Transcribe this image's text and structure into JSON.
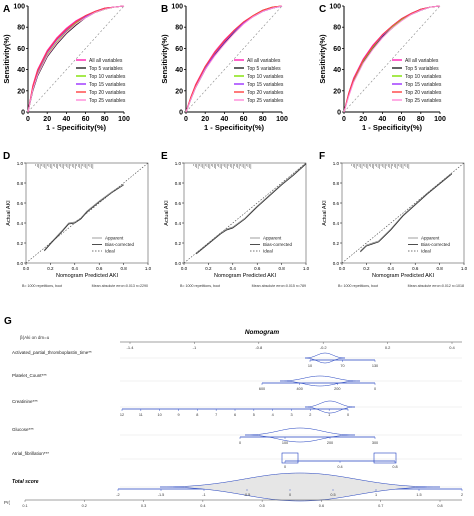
{
  "chart_data": [
    {
      "panel_label": "A",
      "type": "line",
      "xlabel": "1 - Specificity(%)",
      "ylabel": "Sensitivity(%)",
      "xlim": [
        0,
        100
      ],
      "ylim": [
        0,
        100
      ],
      "xticks": [
        "0",
        "20",
        "40",
        "60",
        "80",
        "100"
      ],
      "yticks": [
        "0",
        "20",
        "40",
        "60",
        "80",
        "100"
      ],
      "legend_position": "bottom-right",
      "series": [
        {
          "name": "All all variables",
          "color": "#ff1fb0",
          "x": [
            0,
            5,
            10,
            20,
            30,
            40,
            50,
            60,
            70,
            80,
            90,
            100
          ],
          "y": [
            0,
            25,
            40,
            58,
            70,
            79,
            86,
            91,
            95,
            98,
            99,
            100
          ]
        },
        {
          "name": "Top 5 variables",
          "color": "#222222",
          "x": [
            0,
            5,
            10,
            20,
            30,
            40,
            50,
            60,
            70,
            80,
            90,
            100
          ],
          "y": [
            0,
            20,
            34,
            52,
            64,
            74,
            82,
            89,
            94,
            97,
            99,
            100
          ]
        },
        {
          "name": "Top 10 variables",
          "color": "#7fe000",
          "x": [
            0,
            5,
            10,
            20,
            30,
            40,
            50,
            60,
            70,
            80,
            90,
            100
          ],
          "y": [
            0,
            22,
            36,
            54,
            66,
            76,
            84,
            90,
            94,
            97,
            99,
            100
          ]
        },
        {
          "name": "Top 15 variables",
          "color": "#9b30ff",
          "x": [
            0,
            5,
            10,
            20,
            30,
            40,
            50,
            60,
            70,
            80,
            90,
            100
          ],
          "y": [
            0,
            23,
            38,
            56,
            68,
            77,
            85,
            90,
            95,
            98,
            99,
            100
          ]
        },
        {
          "name": "Top 20 variables",
          "color": "#ff4040",
          "x": [
            0,
            5,
            10,
            20,
            30,
            40,
            50,
            60,
            70,
            80,
            90,
            100
          ],
          "y": [
            0,
            24,
            39,
            57,
            69,
            78,
            85,
            91,
            95,
            98,
            99,
            100
          ]
        },
        {
          "name": "Top 25 variables",
          "color": "#ff8ad8",
          "x": [
            0,
            5,
            10,
            20,
            30,
            40,
            50,
            60,
            70,
            80,
            90,
            100
          ],
          "y": [
            0,
            21,
            35,
            53,
            65,
            75,
            83,
            89,
            94,
            97,
            99,
            100
          ]
        }
      ]
    },
    {
      "panel_label": "B",
      "type": "line",
      "xlabel": "1 - Specificity(%)",
      "ylabel": "Sensitivity(%)",
      "xlim": [
        0,
        100
      ],
      "ylim": [
        0,
        100
      ],
      "xticks": [
        "0",
        "20",
        "40",
        "60",
        "80",
        "100"
      ],
      "yticks": [
        "0",
        "20",
        "40",
        "60",
        "80",
        "100"
      ],
      "legend_position": "bottom-right",
      "series": [
        {
          "name": "All all variables",
          "color": "#ff1fb0",
          "x": [
            0,
            5,
            10,
            20,
            30,
            40,
            50,
            60,
            70,
            80,
            90,
            100
          ],
          "y": [
            0,
            14,
            26,
            43,
            57,
            68,
            77,
            85,
            91,
            96,
            99,
            100
          ]
        },
        {
          "name": "Top 5 variables",
          "color": "#222222",
          "x": [
            0,
            5,
            10,
            20,
            30,
            40,
            50,
            60,
            70,
            80,
            90,
            100
          ],
          "y": [
            0,
            12,
            23,
            40,
            54,
            65,
            75,
            84,
            90,
            95,
            98,
            100
          ]
        },
        {
          "name": "Top 10 variables",
          "color": "#7fe000",
          "x": [
            0,
            5,
            10,
            20,
            30,
            40,
            50,
            60,
            70,
            80,
            90,
            100
          ],
          "y": [
            0,
            13,
            25,
            42,
            56,
            67,
            76,
            84,
            91,
            96,
            99,
            100
          ]
        },
        {
          "name": "Top 15 variables",
          "color": "#9b30ff",
          "x": [
            0,
            5,
            10,
            20,
            30,
            40,
            50,
            60,
            70,
            80,
            90,
            100
          ],
          "y": [
            0,
            13,
            24,
            41,
            55,
            66,
            76,
            84,
            90,
            95,
            98,
            100
          ]
        },
        {
          "name": "Top 20 variables",
          "color": "#ff4040",
          "x": [
            0,
            5,
            10,
            20,
            30,
            40,
            50,
            60,
            70,
            80,
            90,
            100
          ],
          "y": [
            0,
            14,
            25,
            43,
            56,
            67,
            77,
            85,
            91,
            96,
            99,
            100
          ]
        },
        {
          "name": "Top 25 variables",
          "color": "#ff8ad8",
          "x": [
            0,
            5,
            10,
            20,
            30,
            40,
            50,
            60,
            70,
            80,
            90,
            100
          ],
          "y": [
            0,
            12,
            23,
            40,
            53,
            64,
            74,
            83,
            90,
            95,
            98,
            100
          ]
        }
      ]
    },
    {
      "panel_label": "C",
      "type": "line",
      "xlabel": "1 - Specificity(%)",
      "ylabel": "Sensitivity(%)",
      "xlim": [
        0,
        100
      ],
      "ylim": [
        0,
        100
      ],
      "xticks": [
        "0",
        "20",
        "40",
        "60",
        "80",
        "100"
      ],
      "yticks": [
        "0",
        "20",
        "40",
        "60",
        "80",
        "100"
      ],
      "legend_position": "bottom-right",
      "series": [
        {
          "name": "All all variables",
          "color": "#ff1fb0",
          "x": [
            0,
            5,
            10,
            20,
            30,
            40,
            50,
            60,
            70,
            80,
            90,
            100
          ],
          "y": [
            0,
            18,
            32,
            50,
            63,
            73,
            81,
            88,
            93,
            97,
            99,
            100
          ]
        },
        {
          "name": "Top 5 variables",
          "color": "#222222",
          "x": [
            0,
            5,
            10,
            20,
            30,
            40,
            50,
            60,
            70,
            80,
            90,
            100
          ],
          "y": [
            0,
            16,
            29,
            47,
            60,
            71,
            79,
            87,
            92,
            96,
            99,
            100
          ]
        },
        {
          "name": "Top 10 variables",
          "color": "#7fe000",
          "x": [
            0,
            5,
            10,
            20,
            30,
            40,
            50,
            60,
            70,
            80,
            90,
            100
          ],
          "y": [
            0,
            17,
            30,
            48,
            61,
            72,
            80,
            87,
            93,
            97,
            99,
            100
          ]
        },
        {
          "name": "Top 15 variables",
          "color": "#9b30ff",
          "x": [
            0,
            5,
            10,
            20,
            30,
            40,
            50,
            60,
            70,
            80,
            90,
            100
          ],
          "y": [
            0,
            17,
            31,
            49,
            62,
            72,
            81,
            88,
            93,
            97,
            99,
            100
          ]
        },
        {
          "name": "Top 20 variables",
          "color": "#ff4040",
          "x": [
            0,
            5,
            10,
            20,
            30,
            40,
            50,
            60,
            70,
            80,
            90,
            100
          ],
          "y": [
            0,
            18,
            31,
            49,
            62,
            73,
            81,
            88,
            93,
            97,
            99,
            100
          ]
        },
        {
          "name": "Top 25 variables",
          "color": "#ff8ad8",
          "x": [
            0,
            5,
            10,
            20,
            30,
            40,
            50,
            60,
            70,
            80,
            90,
            100
          ],
          "y": [
            0,
            15,
            28,
            46,
            59,
            70,
            79,
            86,
            92,
            96,
            99,
            100
          ]
        }
      ]
    },
    {
      "panel_label": "D",
      "type": "line",
      "xlabel": "Nomogram Predicted AKI",
      "ylabel": "Actual AKI",
      "xlim": [
        0,
        1
      ],
      "ylim": [
        0,
        1
      ],
      "xticks": [
        "0.0",
        "0.2",
        "0.4",
        "0.6",
        "0.8",
        "1.0"
      ],
      "yticks": [
        "0.0",
        "0.2",
        "0.4",
        "0.6",
        "0.8",
        "1.0"
      ],
      "legend_position": "bottom-right",
      "footnote_left": "B= 1000 repetitions, boot",
      "footnote_right": "Mean absolute error=0.013 n=2290",
      "series": [
        {
          "name": "Apparent",
          "x": [
            0.15,
            0.2,
            0.3,
            0.35,
            0.4,
            0.45,
            0.5,
            0.6,
            0.7,
            0.8
          ],
          "y": [
            0.13,
            0.2,
            0.33,
            0.4,
            0.41,
            0.45,
            0.52,
            0.62,
            0.71,
            0.79
          ]
        },
        {
          "name": "Bias-corrected",
          "x": [
            0.15,
            0.2,
            0.3,
            0.35,
            0.4,
            0.45,
            0.5,
            0.6,
            0.7,
            0.8
          ],
          "y": [
            0.12,
            0.19,
            0.32,
            0.39,
            0.4,
            0.44,
            0.51,
            0.61,
            0.7,
            0.78
          ]
        },
        {
          "name": "Ideal",
          "x": [
            0,
            1
          ],
          "y": [
            0,
            1
          ]
        }
      ]
    },
    {
      "panel_label": "E",
      "type": "line",
      "xlabel": "Nomogram Predicted AKI",
      "ylabel": "Actual AKI",
      "xlim": [
        0,
        1
      ],
      "ylim": [
        0,
        1
      ],
      "xticks": [
        "0.0",
        "0.2",
        "0.4",
        "0.6",
        "0.8",
        "1.0"
      ],
      "yticks": [
        "0.0",
        "0.2",
        "0.4",
        "0.6",
        "0.8",
        "1.0"
      ],
      "legend_position": "bottom-right",
      "footnote_left": "B= 1000 repetitions, boot",
      "footnote_right": "Mean absolute error=0.015 n=789",
      "series": [
        {
          "name": "Apparent",
          "x": [
            0.1,
            0.2,
            0.3,
            0.35,
            0.4,
            0.5,
            0.6,
            0.7,
            0.8,
            0.9,
            1.0
          ],
          "y": [
            0.1,
            0.2,
            0.3,
            0.34,
            0.36,
            0.45,
            0.57,
            0.68,
            0.79,
            0.89,
            1.0
          ]
        },
        {
          "name": "Bias-corrected",
          "x": [
            0.1,
            0.2,
            0.3,
            0.35,
            0.4,
            0.5,
            0.6,
            0.7,
            0.8,
            0.9,
            1.0
          ],
          "y": [
            0.09,
            0.19,
            0.29,
            0.33,
            0.35,
            0.44,
            0.56,
            0.67,
            0.78,
            0.88,
            0.99
          ]
        },
        {
          "name": "Ideal",
          "x": [
            0,
            1
          ],
          "y": [
            0,
            1
          ]
        }
      ]
    },
    {
      "panel_label": "F",
      "type": "line",
      "xlabel": "Nomogram Predicted AKI",
      "ylabel": "Actual AKI",
      "xlim": [
        0,
        1
      ],
      "ylim": [
        0,
        1
      ],
      "xticks": [
        "0.0",
        "0.2",
        "0.4",
        "0.6",
        "0.8",
        "1.0"
      ],
      "yticks": [
        "0.0",
        "0.2",
        "0.4",
        "0.6",
        "0.8",
        "1.0"
      ],
      "legend_position": "bottom-right",
      "footnote_left": "B= 1000 repetitions, boot",
      "footnote_right": "Mean absolute error=0.012 n=1018",
      "series": [
        {
          "name": "Apparent",
          "x": [
            0.15,
            0.2,
            0.25,
            0.3,
            0.4,
            0.5,
            0.6,
            0.7,
            0.8,
            0.9
          ],
          "y": [
            0.12,
            0.18,
            0.2,
            0.22,
            0.34,
            0.48,
            0.59,
            0.7,
            0.8,
            0.9
          ]
        },
        {
          "name": "Bias-corrected",
          "x": [
            0.15,
            0.2,
            0.25,
            0.3,
            0.4,
            0.5,
            0.6,
            0.7,
            0.8,
            0.9
          ],
          "y": [
            0.11,
            0.17,
            0.19,
            0.21,
            0.33,
            0.47,
            0.58,
            0.69,
            0.79,
            0.89
          ]
        },
        {
          "name": "Ideal",
          "x": [
            0,
            1
          ],
          "y": [
            0,
            1
          ]
        }
      ]
    },
    {
      "panel_label": "G",
      "type": "table",
      "title": "Nomogram",
      "header_label": "β(Aki on dm=u",
      "rows": [
        {
          "label": "Activated_partial_thromboplastin_time**",
          "ticks": [
            "10",
            "70",
            "130"
          ]
        },
        {
          "label": "Platelet_Count***",
          "ticks": [
            "600",
            "400",
            "200",
            "0"
          ]
        },
        {
          "label": "Creatinine***",
          "ticks": [
            "12",
            "11",
            "10",
            "9",
            "8",
            "7",
            "6",
            "5",
            "4",
            "3",
            "2",
            "1",
            "0"
          ]
        },
        {
          "label": "Glucose***",
          "ticks": [
            "0",
            "100",
            "200",
            "300"
          ]
        },
        {
          "label": "Atrial_fibrillation***",
          "ticks": [
            "0",
            "0.4",
            "0.8"
          ]
        },
        {
          "label": "Total score",
          "ticks": [
            "-2",
            "-1.5",
            "-1",
            "-0.5",
            "0",
            "0.5",
            "1",
            "1.5",
            "2"
          ]
        }
      ],
      "top_scale_ticks": [
        "-1.4",
        "-1",
        "-0.8",
        "-0.2",
        "0.2",
        "0.4"
      ],
      "prob_label": "Pr(",
      "prob_ticks": [
        "0.1",
        "0.2",
        "0.3",
        "0.4",
        "0.5",
        "0.6",
        "0.7",
        "0.8"
      ]
    }
  ]
}
